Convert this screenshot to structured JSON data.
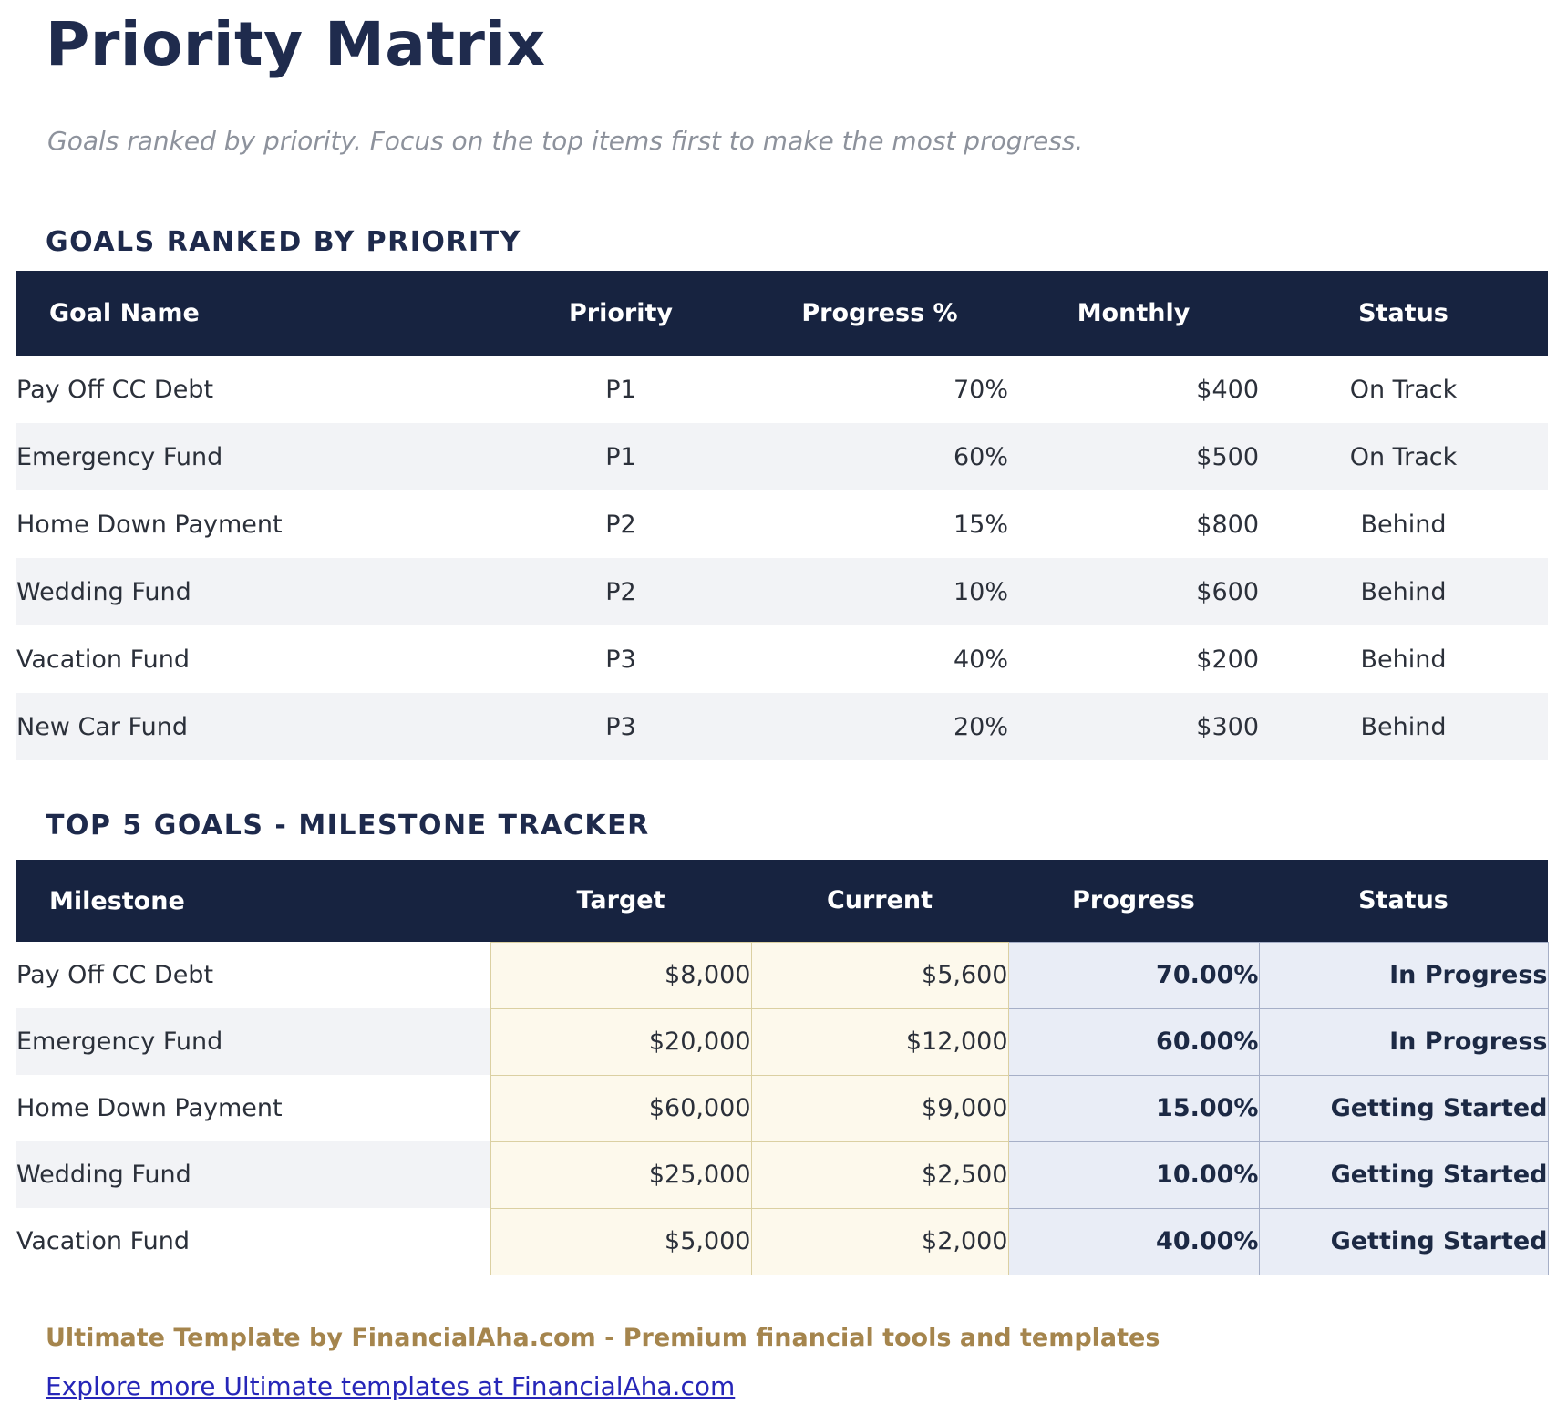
{
  "page": {
    "title": "Priority Matrix",
    "subtitle": "Goals ranked by priority. Focus on the top items first to make the most progress."
  },
  "colors": {
    "header_navy": "#172340",
    "heading_navy": "#1f2b4d",
    "stripe_gray": "#f2f3f6",
    "cream_fill": "#fdf9ec",
    "cream_border": "#dbd0a2",
    "lavender_fill": "#e9edf6",
    "lavender_border": "#a6afc7",
    "footer_gold": "#a5854d",
    "link_blue": "#2626b8"
  },
  "goals_table": {
    "section_title": "GOALS RANKED BY PRIORITY",
    "headers": [
      "Goal Name",
      "Priority",
      "Progress %",
      "Monthly",
      "Status"
    ],
    "rows": [
      [
        "Pay Off CC Debt",
        "P1",
        "70%",
        "$400",
        "On Track"
      ],
      [
        "Emergency Fund",
        "P1",
        "60%",
        "$500",
        "On Track"
      ],
      [
        "Home Down Payment",
        "P2",
        "15%",
        "$800",
        "Behind"
      ],
      [
        "Wedding Fund",
        "P2",
        "10%",
        "$600",
        "Behind"
      ],
      [
        "Vacation Fund",
        "P3",
        "40%",
        "$200",
        "Behind"
      ],
      [
        "New Car Fund",
        "P3",
        "20%",
        "$300",
        "Behind"
      ]
    ]
  },
  "milestone_table": {
    "section_title": "TOP 5 GOALS - MILESTONE TRACKER",
    "headers": [
      "Milestone",
      "Target",
      "Current",
      "Progress",
      "Status"
    ],
    "rows": [
      [
        "Pay Off CC Debt",
        "$8,000",
        "$5,600",
        "70.00%",
        "In Progress"
      ],
      [
        "Emergency Fund",
        "$20,000",
        "$12,000",
        "60.00%",
        "In Progress"
      ],
      [
        "Home Down Payment",
        "$60,000",
        "$9,000",
        "15.00%",
        "Getting Started"
      ],
      [
        "Wedding Fund",
        "$25,000",
        "$2,500",
        "10.00%",
        "Getting Started"
      ],
      [
        "Vacation Fund",
        "$5,000",
        "$2,000",
        "40.00%",
        "Getting Started"
      ]
    ]
  },
  "footer": {
    "branding": "Ultimate Template by FinancialAha.com - Premium financial tools and templates",
    "link_text": "Explore more Ultimate templates at FinancialAha.com"
  }
}
